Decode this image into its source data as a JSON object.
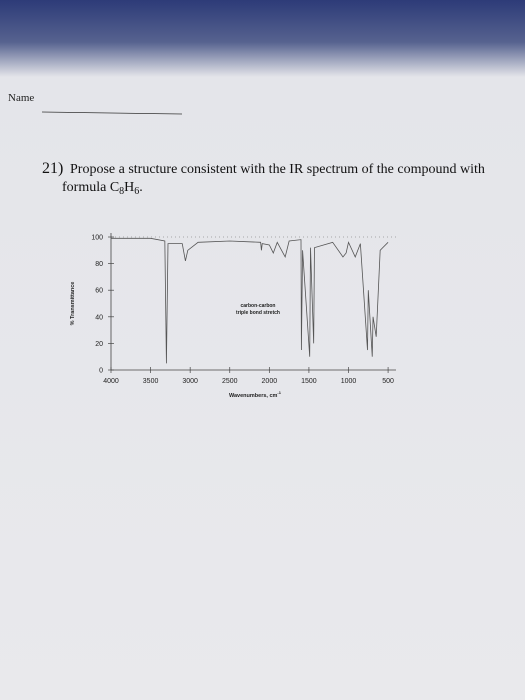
{
  "header": {
    "name_label": "Name"
  },
  "question": {
    "number": "21)",
    "text": "Propose a structure consistent with the IR spectrum of the compound with",
    "formula_parts": [
      "formula C",
      "8",
      "H",
      "6",
      "."
    ]
  },
  "chart_data": {
    "type": "line",
    "x": [
      4000,
      3500,
      3320,
      3300,
      3280,
      3100,
      3060,
      3030,
      2900,
      2500,
      2110,
      2100,
      2090,
      2000,
      1950,
      1900,
      1800,
      1750,
      1600,
      1595,
      1580,
      1490,
      1480,
      1440,
      1430,
      1200,
      1070,
      1030,
      1000,
      915,
      850,
      760,
      750,
      700,
      690,
      650,
      600,
      500
    ],
    "series": [
      {
        "color": "#555555",
        "values": [
          99,
          99,
          97,
          5,
          95,
          95,
          82,
          90,
          96,
          97,
          96,
          90,
          95,
          94,
          88,
          96,
          85,
          97,
          98,
          15,
          90,
          10,
          92,
          20,
          92,
          96,
          85,
          88,
          96,
          85,
          95,
          15,
          60,
          10,
          40,
          25,
          90,
          96
        ]
      }
    ],
    "xlim": [
      4000,
      400
    ],
    "xticks": [
      4000,
      3500,
      3000,
      2500,
      2000,
      1500,
      1000,
      500
    ],
    "ylim": [
      0,
      100
    ],
    "yticks": [
      0,
      20,
      40,
      60,
      80,
      100
    ],
    "xlabel": "Wavenumbers, cm",
    "xlabel_superscript": "-1",
    "ylabel": "% Transmittance",
    "annotations": [
      "carbon-carbon",
      "triple bond stretch"
    ]
  }
}
